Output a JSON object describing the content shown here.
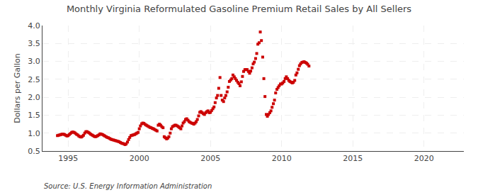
{
  "chart_data": {
    "type": "scatter",
    "title": "Monthly Virginia Reformulated Gasoline Premium Retail Sales by All Sellers",
    "ylabel": "Dollars per Gallon",
    "annotations": [
      "Source: U.S. Energy Information Administration"
    ],
    "color": "#cc0000",
    "marker": "square",
    "grid": true,
    "xlim": [
      1993.2,
      2022.8
    ],
    "ylim": [
      0.5,
      4.0
    ],
    "xticks": [
      1995,
      2000,
      2005,
      2010,
      2015,
      2020
    ],
    "yticks": [
      0.5,
      {
        "value": 1.0,
        "label": "1.0"
      },
      1.5,
      {
        "value": 2.0,
        "label": "2.0"
      },
      2.5,
      {
        "value": 3.0,
        "label": "3.0"
      },
      3.5,
      {
        "value": 4.0,
        "label": "4.0"
      }
    ],
    "x": [
      1994.25,
      1994.33,
      1994.42,
      1994.5,
      1994.58,
      1994.67,
      1994.75,
      1994.83,
      1994.92,
      1995.0,
      1995.08,
      1995.17,
      1995.25,
      1995.33,
      1995.42,
      1995.5,
      1995.58,
      1995.67,
      1995.75,
      1995.83,
      1995.92,
      1996.0,
      1996.08,
      1996.17,
      1996.25,
      1996.33,
      1996.42,
      1996.5,
      1996.58,
      1996.67,
      1996.75,
      1996.83,
      1996.92,
      1997.0,
      1997.08,
      1997.17,
      1997.25,
      1997.33,
      1997.42,
      1997.5,
      1997.58,
      1997.67,
      1997.75,
      1997.83,
      1997.92,
      1998.0,
      1998.08,
      1998.17,
      1998.25,
      1998.33,
      1998.42,
      1998.5,
      1998.58,
      1998.67,
      1998.75,
      1998.83,
      1998.92,
      1999.0,
      1999.08,
      1999.17,
      1999.25,
      1999.33,
      1999.42,
      1999.5,
      1999.58,
      1999.67,
      1999.75,
      1999.83,
      1999.92,
      2000.0,
      2000.08,
      2000.17,
      2000.25,
      2000.33,
      2000.42,
      2000.5,
      2000.58,
      2000.67,
      2000.75,
      2000.83,
      2000.92,
      2001.0,
      2001.08,
      2001.17,
      2001.25,
      2001.33,
      2001.42,
      2001.5,
      2001.58,
      2001.67,
      2001.75,
      2001.83,
      2001.92,
      2002.0,
      2002.08,
      2002.17,
      2002.25,
      2002.33,
      2002.42,
      2002.5,
      2002.58,
      2002.67,
      2002.75,
      2002.83,
      2002.92,
      2003.0,
      2003.08,
      2003.17,
      2003.25,
      2003.33,
      2003.42,
      2003.5,
      2003.58,
      2003.67,
      2003.75,
      2003.83,
      2003.92,
      2004.0,
      2004.08,
      2004.17,
      2004.25,
      2004.33,
      2004.42,
      2004.5,
      2004.58,
      2004.67,
      2004.75,
      2004.83,
      2004.92,
      2005.0,
      2005.08,
      2005.17,
      2005.25,
      2005.33,
      2005.42,
      2005.5,
      2005.58,
      2005.67,
      2005.75,
      2005.83,
      2005.92,
      2006.0,
      2006.08,
      2006.17,
      2006.25,
      2006.33,
      2006.42,
      2006.5,
      2006.58,
      2006.67,
      2006.75,
      2006.83,
      2006.92,
      2007.0,
      2007.08,
      2007.17,
      2007.25,
      2007.33,
      2007.42,
      2007.5,
      2007.58,
      2007.67,
      2007.75,
      2007.83,
      2007.92,
      2008.0,
      2008.08,
      2008.17,
      2008.25,
      2008.33,
      2008.42,
      2008.5,
      2008.58,
      2008.67,
      2008.75,
      2008.83,
      2008.92,
      2009.0,
      2009.08,
      2009.17,
      2009.25,
      2009.33,
      2009.42,
      2009.5,
      2009.58,
      2009.67,
      2009.75,
      2009.83,
      2009.92,
      2010.0,
      2010.08,
      2010.17,
      2010.25,
      2010.33,
      2010.42,
      2010.5,
      2010.58,
      2010.67,
      2010.75,
      2010.83,
      2010.92,
      2011.0,
      2011.08,
      2011.17,
      2011.25,
      2011.33,
      2011.42,
      2011.5,
      2011.58,
      2011.67,
      2011.75,
      2011.83,
      2011.92
    ],
    "values": [
      0.93,
      0.94,
      0.95,
      0.96,
      0.97,
      0.97,
      0.96,
      0.94,
      0.92,
      0.93,
      0.96,
      0.99,
      1.02,
      1.03,
      1.02,
      1.0,
      0.97,
      0.95,
      0.92,
      0.9,
      0.89,
      0.91,
      0.94,
      1.0,
      1.04,
      1.04,
      1.02,
      1.0,
      0.97,
      0.95,
      0.93,
      0.91,
      0.9,
      0.91,
      0.93,
      0.95,
      0.98,
      0.97,
      0.96,
      0.94,
      0.92,
      0.9,
      0.88,
      0.87,
      0.85,
      0.83,
      0.82,
      0.81,
      0.8,
      0.79,
      0.78,
      0.77,
      0.76,
      0.74,
      0.72,
      0.71,
      0.7,
      0.68,
      0.7,
      0.75,
      0.82,
      0.88,
      0.93,
      0.94,
      0.95,
      0.96,
      0.98,
      1.0,
      1.02,
      1.12,
      1.2,
      1.26,
      1.28,
      1.27,
      1.24,
      1.22,
      1.2,
      1.18,
      1.16,
      1.15,
      1.13,
      1.12,
      1.1,
      1.08,
      1.06,
      1.22,
      1.25,
      1.22,
      1.18,
      1.15,
      0.9,
      0.87,
      0.84,
      0.86,
      0.9,
      1.0,
      1.12,
      1.18,
      1.2,
      1.22,
      1.22,
      1.2,
      1.18,
      1.15,
      1.12,
      1.2,
      1.28,
      1.32,
      1.38,
      1.4,
      1.36,
      1.32,
      1.3,
      1.28,
      1.27,
      1.25,
      1.28,
      1.32,
      1.38,
      1.48,
      1.58,
      1.6,
      1.57,
      1.54,
      1.52,
      1.57,
      1.6,
      1.62,
      1.57,
      1.58,
      1.63,
      1.68,
      1.73,
      1.85,
      1.98,
      2.05,
      2.25,
      2.55,
      2.05,
      1.92,
      1.88,
      1.98,
      2.05,
      2.15,
      2.28,
      2.44,
      2.48,
      2.52,
      2.62,
      2.57,
      2.52,
      2.47,
      2.42,
      2.38,
      2.32,
      2.43,
      2.58,
      2.72,
      2.77,
      2.77,
      2.77,
      2.72,
      2.67,
      2.73,
      2.82,
      2.93,
      2.98,
      3.08,
      3.22,
      3.48,
      3.52,
      3.82,
      3.58,
      3.12,
      2.52,
      2.02,
      1.52,
      1.47,
      1.52,
      1.57,
      1.62,
      1.72,
      1.82,
      1.92,
      2.12,
      2.22,
      2.27,
      2.32,
      2.37,
      2.37,
      2.4,
      2.44,
      2.52,
      2.57,
      2.52,
      2.47,
      2.44,
      2.42,
      2.4,
      2.42,
      2.47,
      2.62,
      2.68,
      2.78,
      2.88,
      2.93,
      2.97,
      2.98,
      2.99,
      2.97,
      2.95,
      2.92,
      2.87
    ]
  }
}
